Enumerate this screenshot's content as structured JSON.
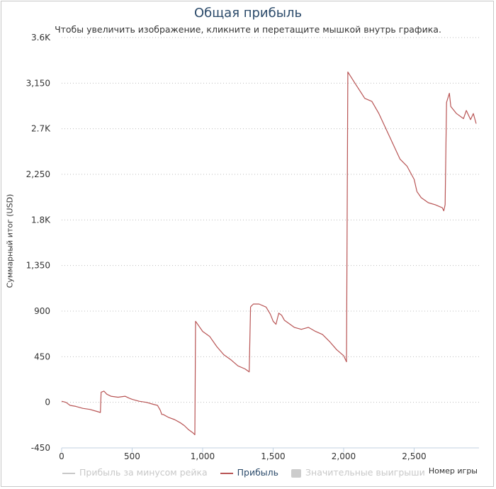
{
  "chart_data": {
    "type": "line",
    "title": "Общая прибыль",
    "subtitle": "Чтобы увеличить изображение, кликните и перетащите мышкой внутрь графика.",
    "ylabel": "Суммарный итог (USD)",
    "xlabel": "Номер игры",
    "xlim": [
      0,
      2960
    ],
    "ylim": [
      -450,
      3600
    ],
    "x_ticks": [
      0,
      500,
      1000,
      1500,
      2000,
      2500
    ],
    "x_tick_labels": [
      "0",
      "500",
      "1,000",
      "1,500",
      "2,000",
      "2,500"
    ],
    "y_ticks": [
      -450,
      0,
      450,
      900,
      1350,
      1800,
      2250,
      2700,
      3150,
      3600
    ],
    "y_tick_labels": [
      "-450",
      "0",
      "450",
      "900",
      "1,350",
      "1.8K",
      "2,250",
      "2.7K",
      "3,150",
      "3.6K"
    ],
    "grid": "horizontal dotted",
    "legend_position": "bottom",
    "legend": [
      {
        "name": "Прибыль за минусом рейка",
        "color": "#c8c8c8",
        "style": "line",
        "active": false
      },
      {
        "name": "Прибыль",
        "color": "#b85454",
        "style": "line",
        "active": true
      },
      {
        "name": "Значительные выигрыши",
        "color": "#cccccc",
        "style": "box",
        "active": false
      }
    ],
    "series": [
      {
        "name": "Прибыль",
        "color": "#b85454",
        "x": [
          0,
          30,
          60,
          100,
          150,
          200,
          250,
          275,
          280,
          300,
          320,
          350,
          400,
          450,
          480,
          500,
          550,
          600,
          650,
          680,
          700,
          710,
          720,
          760,
          800,
          840,
          870,
          900,
          930,
          945,
          950,
          960,
          1000,
          1050,
          1100,
          1150,
          1200,
          1250,
          1300,
          1330,
          1340,
          1345,
          1360,
          1400,
          1450,
          1480,
          1500,
          1520,
          1540,
          1560,
          1580,
          1600,
          1650,
          1700,
          1750,
          1800,
          1850,
          1900,
          1950,
          2000,
          2010,
          2020,
          2030,
          2080,
          2150,
          2200,
          2250,
          2300,
          2350,
          2400,
          2450,
          2500,
          2520,
          2550,
          2600,
          2650,
          2700,
          2710,
          2720,
          2730,
          2750,
          2760,
          2800,
          2850,
          2870,
          2900,
          2920,
          2940
        ],
        "y": [
          10,
          0,
          -30,
          -40,
          -60,
          -70,
          -90,
          -100,
          100,
          110,
          80,
          60,
          50,
          60,
          40,
          30,
          10,
          0,
          -20,
          -30,
          -80,
          -120,
          -120,
          -150,
          -170,
          -200,
          -230,
          -270,
          -300,
          -320,
          800,
          780,
          700,
          650,
          550,
          470,
          420,
          360,
          330,
          300,
          940,
          950,
          970,
          970,
          940,
          870,
          800,
          770,
          880,
          860,
          810,
          790,
          740,
          720,
          740,
          700,
          670,
          600,
          520,
          460,
          430,
          400,
          3260,
          3150,
          3000,
          2970,
          2850,
          2700,
          2550,
          2400,
          2330,
          2200,
          2080,
          2020,
          1970,
          1950,
          1920,
          1890,
          1950,
          2960,
          3050,
          2920,
          2850,
          2800,
          2880,
          2790,
          2850,
          2750
        ]
      }
    ]
  }
}
